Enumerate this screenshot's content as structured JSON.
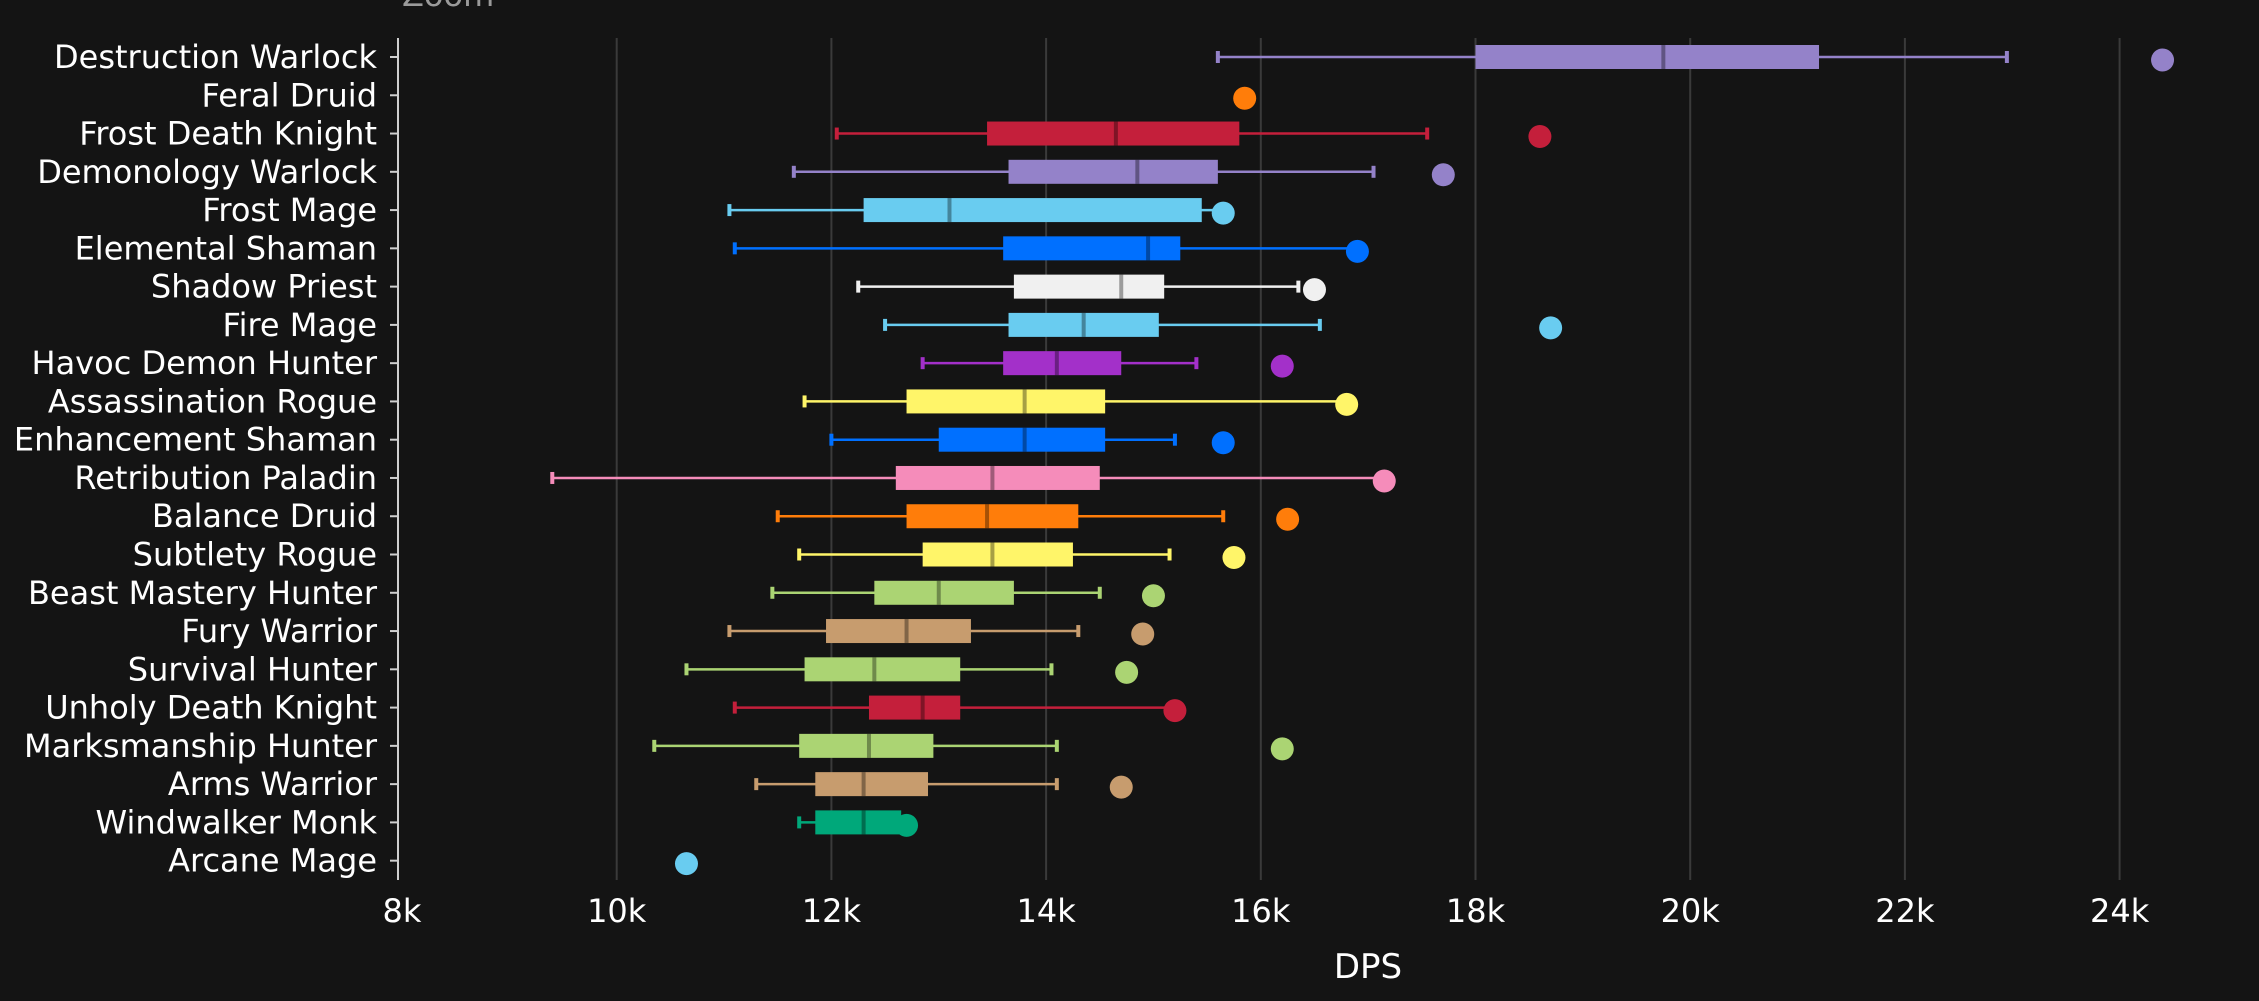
{
  "zoom_label": "Zoom",
  "chart_data": {
    "type": "boxplot",
    "orientation": "horizontal",
    "title": "",
    "xlabel": "DPS",
    "ylabel": "",
    "xlim": [
      8000,
      25000
    ],
    "grid": true,
    "x_ticks": [
      8000,
      10000,
      12000,
      14000,
      16000,
      18000,
      20000,
      22000,
      24000
    ],
    "x_tick_labels": [
      "8k",
      "10k",
      "12k",
      "14k",
      "16k",
      "18k",
      "20k",
      "22k",
      "24k"
    ],
    "series": [
      {
        "name": "Destruction Warlock",
        "color": "#9482C9",
        "whisker_low": 15600,
        "q1": 18000,
        "median": 19750,
        "q3": 21200,
        "whisker_high": 22950,
        "outlier": 24400
      },
      {
        "name": "Feral Druid",
        "color": "#FF7D0A",
        "whisker_low": 15850,
        "q1": 15850,
        "median": 15850,
        "q3": 15850,
        "whisker_high": 15850,
        "outlier": 15850
      },
      {
        "name": "Frost Death Knight",
        "color": "#C41F3B",
        "whisker_low": 12050,
        "q1": 13450,
        "median": 14650,
        "q3": 15800,
        "whisker_high": 17550,
        "outlier": 18600
      },
      {
        "name": "Demonology Warlock",
        "color": "#9482C9",
        "whisker_low": 11650,
        "q1": 13650,
        "median": 14850,
        "q3": 15600,
        "whisker_high": 17050,
        "outlier": 17700
      },
      {
        "name": "Frost Mage",
        "color": "#69CCF0",
        "whisker_low": 11050,
        "q1": 12300,
        "median": 13100,
        "q3": 15450,
        "whisker_high": 15650,
        "outlier": 15650
      },
      {
        "name": "Elemental Shaman",
        "color": "#0070FF",
        "whisker_low": 11100,
        "q1": 13600,
        "median": 14950,
        "q3": 15250,
        "whisker_high": 16900,
        "outlier": 16900
      },
      {
        "name": "Shadow Priest",
        "color": "#F0F0F0",
        "whisker_low": 12250,
        "q1": 13700,
        "median": 14700,
        "q3": 15100,
        "whisker_high": 16350,
        "outlier": 16500
      },
      {
        "name": "Fire Mage",
        "color": "#69CCF0",
        "whisker_low": 12500,
        "q1": 13650,
        "median": 14350,
        "q3": 15050,
        "whisker_high": 16550,
        "outlier": 18700
      },
      {
        "name": "Havoc Demon Hunter",
        "color": "#A330C9",
        "whisker_low": 12850,
        "q1": 13600,
        "median": 14100,
        "q3": 14700,
        "whisker_high": 15400,
        "outlier": 16200
      },
      {
        "name": "Assassination Rogue",
        "color": "#FFF569",
        "whisker_low": 11750,
        "q1": 12700,
        "median": 13800,
        "q3": 14550,
        "whisker_high": 16800,
        "outlier": 16800
      },
      {
        "name": "Enhancement Shaman",
        "color": "#0070FF",
        "whisker_low": 12000,
        "q1": 13000,
        "median": 13800,
        "q3": 14550,
        "whisker_high": 15200,
        "outlier": 15650
      },
      {
        "name": "Retribution Paladin",
        "color": "#F58CBA",
        "whisker_low": 9400,
        "q1": 12600,
        "median": 13500,
        "q3": 14500,
        "whisker_high": 17100,
        "outlier": 17150
      },
      {
        "name": "Balance Druid",
        "color": "#FF7D0A",
        "whisker_low": 11500,
        "q1": 12700,
        "median": 13450,
        "q3": 14300,
        "whisker_high": 15650,
        "outlier": 16250
      },
      {
        "name": "Subtlety Rogue",
        "color": "#FFF569",
        "whisker_low": 11700,
        "q1": 12850,
        "median": 13500,
        "q3": 14250,
        "whisker_high": 15150,
        "outlier": 15750
      },
      {
        "name": "Beast Mastery Hunter",
        "color": "#ABD473",
        "whisker_low": 11450,
        "q1": 12400,
        "median": 13000,
        "q3": 13700,
        "whisker_high": 14500,
        "outlier": 15000
      },
      {
        "name": "Fury Warrior",
        "color": "#C79C6E",
        "whisker_low": 11050,
        "q1": 11950,
        "median": 12700,
        "q3": 13300,
        "whisker_high": 14300,
        "outlier": 14900
      },
      {
        "name": "Survival Hunter",
        "color": "#ABD473",
        "whisker_low": 10650,
        "q1": 11750,
        "median": 12400,
        "q3": 13200,
        "whisker_high": 14050,
        "outlier": 14750
      },
      {
        "name": "Unholy Death Knight",
        "color": "#C41F3B",
        "whisker_low": 11100,
        "q1": 12350,
        "median": 12850,
        "q3": 13200,
        "whisker_high": 15200,
        "outlier": 15200
      },
      {
        "name": "Marksmanship Hunter",
        "color": "#ABD473",
        "whisker_low": 10350,
        "q1": 11700,
        "median": 12350,
        "q3": 12950,
        "whisker_high": 14100,
        "outlier": 16200
      },
      {
        "name": "Arms Warrior",
        "color": "#C79C6E",
        "whisker_low": 11300,
        "q1": 11850,
        "median": 12300,
        "q3": 12900,
        "whisker_high": 14100,
        "outlier": 14700
      },
      {
        "name": "Windwalker Monk",
        "color": "#00A87A",
        "whisker_low": 11700,
        "q1": 11850,
        "median": 12300,
        "q3": 12650,
        "whisker_high": 12650,
        "outlier": 12700
      },
      {
        "name": "Arcane Mage",
        "color": "#69CCF0",
        "whisker_low": 10650,
        "q1": 10650,
        "median": 10650,
        "q3": 10650,
        "whisker_high": 10650,
        "outlier": 10650
      }
    ]
  }
}
